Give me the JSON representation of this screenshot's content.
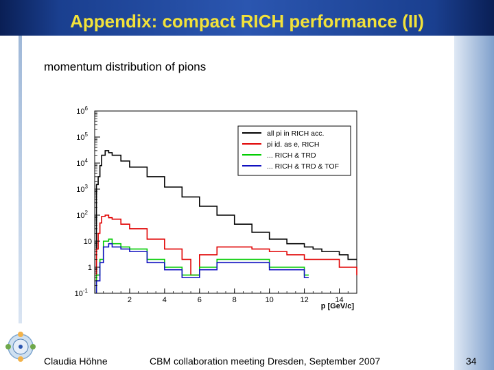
{
  "slide": {
    "title": "Appendix: compact RICH performance (II)",
    "subtitle": "momentum distribution of pions",
    "author": "Claudia Höhne",
    "meeting": "CBM collaboration meeting Dresden, September 2007",
    "page_number": "34"
  },
  "colors": {
    "title": "#f2e23a",
    "header": "#1a3f8f"
  },
  "chart_data": {
    "type": "step-histogram",
    "xlabel": "p [GeV/c]",
    "ylabel": "",
    "xlim": [
      0,
      15
    ],
    "ylim_log10": [
      -1,
      6
    ],
    "y_scale": "log",
    "x_ticks": [
      2,
      4,
      6,
      8,
      10,
      12,
      14
    ],
    "x_tick_labels": [
      "2",
      "4",
      "6",
      "8",
      "10",
      "12",
      "14"
    ],
    "y_ticks_log10": [
      -1,
      0,
      1,
      2,
      3,
      4,
      5,
      6
    ],
    "y_tick_labels": [
      {
        "base": "10",
        "exp": "-1"
      },
      {
        "base": "1",
        "exp": ""
      },
      {
        "base": "10",
        "exp": ""
      },
      {
        "base": "10",
        "exp": "2"
      },
      {
        "base": "10",
        "exp": "3"
      },
      {
        "base": "10",
        "exp": "4"
      },
      {
        "base": "10",
        "exp": "5"
      },
      {
        "base": "10",
        "exp": "6"
      }
    ],
    "legend_position": "top-right",
    "series": [
      {
        "name": "all pi in RICH acc.",
        "color": "#000000",
        "x": [
          0.1,
          0.2,
          0.3,
          0.4,
          0.6,
          0.8,
          1,
          1.5,
          2,
          3,
          4,
          5,
          6,
          7,
          8,
          9,
          10,
          11,
          12,
          12.5,
          13,
          13.5,
          14,
          14.5,
          15
        ],
        "y": [
          1500,
          3000,
          8000,
          20000,
          30000,
          25000,
          20000,
          12000,
          7000,
          3000,
          1200,
          500,
          220,
          100,
          45,
          22,
          12,
          8,
          6,
          5,
          4,
          4,
          3,
          2,
          2
        ]
      },
      {
        "name": "pi id. as e, RICH",
        "color": "#e00000",
        "x": [
          0.1,
          0.2,
          0.3,
          0.4,
          0.6,
          0.8,
          1,
          1.5,
          2,
          3,
          4,
          5,
          5.5,
          6,
          7,
          8,
          9,
          10,
          11,
          12,
          13,
          14,
          15
        ],
        "y": [
          5,
          20,
          50,
          90,
          100,
          80,
          70,
          45,
          30,
          12,
          5,
          2,
          0.5,
          3,
          6,
          6,
          5,
          4,
          3,
          2,
          2,
          1,
          0.5
        ]
      },
      {
        "name": "... RICH & TRD",
        "color": "#00cc00",
        "x": [
          0.1,
          0.3,
          0.5,
          0.8,
          1,
          1.5,
          2,
          3,
          4,
          5,
          6,
          7,
          8,
          9,
          10,
          11,
          12
        ],
        "y": [
          0.5,
          2,
          10,
          12,
          8,
          6,
          5,
          2,
          1,
          0.5,
          1,
          2,
          2,
          2,
          1,
          1,
          0.5
        ]
      },
      {
        "name": "... RICH & TRD & TOF",
        "color": "#1010c0",
        "x": [
          0.1,
          0.3,
          0.5,
          0.8,
          1,
          1.5,
          2,
          3,
          4,
          5,
          6,
          7,
          8,
          9,
          10,
          11,
          12
        ],
        "y": [
          0.3,
          1.5,
          6,
          8,
          6,
          5,
          4,
          1.5,
          0.8,
          0.4,
          0.8,
          1.5,
          1.5,
          1.5,
          0.8,
          0.8,
          0.4
        ]
      }
    ]
  }
}
